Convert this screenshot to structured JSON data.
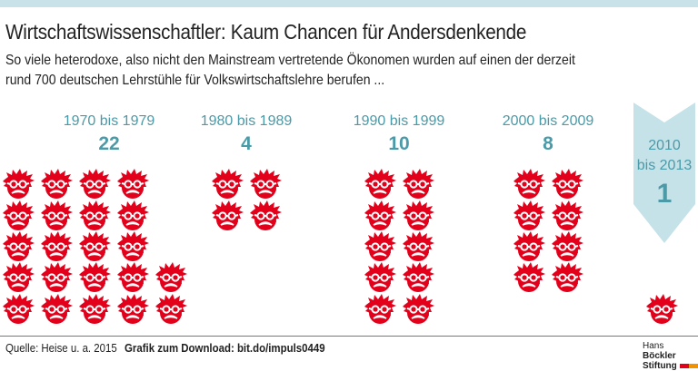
{
  "title": "Wirtschaftswissenschaftler: Kaum Chancen für Andersdenkende",
  "subtitle_lines": [
    "So viele heterodoxe, also nicht den Mainstream vertretende Ökonomen wurden auf einen der derzeit",
    "rund 700 deutschen Lehrstühle für Volkswirtschaftslehre berufen ..."
  ],
  "chart_data": {
    "type": "pictogram",
    "categories": [
      "1970 bis 1979",
      "1980 bis 1989",
      "1990 bis 1999",
      "2000 bis 2009",
      "2010 bis 2013"
    ],
    "values": [
      22,
      4,
      10,
      8,
      1
    ],
    "labels": [
      "1970 bis 1979",
      "1980 bis 1989",
      "1990 bis 1999",
      "2000 bis 2009"
    ],
    "last_label_lines": [
      "2010",
      "bis 2013"
    ],
    "icon": "red-spiky-face-with-glasses-and-mustache"
  },
  "colors": {
    "icon": "#e2001a",
    "accent": "#4a9aa8",
    "banner": "#c5e2e9"
  },
  "footer": {
    "source": "Quelle: Heise u. a. 2015",
    "download": "Grafik zum Download: bit.do/impuls0449",
    "logo_line1_a": "Hans",
    "logo_line1_b": "Böckler",
    "logo_line2": "Stiftung"
  }
}
